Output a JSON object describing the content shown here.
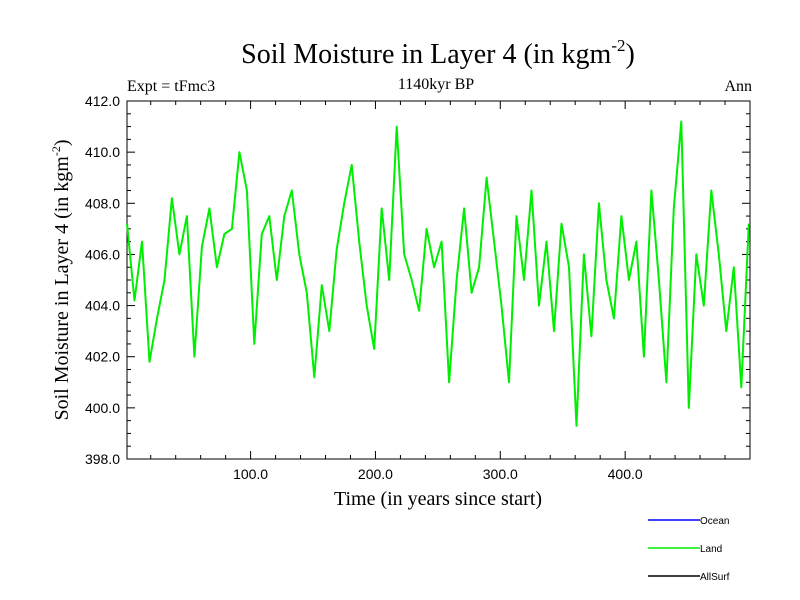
{
  "chart_data": {
    "type": "line",
    "title": "Soil Moisture in Layer 4 (in kgm",
    "title_sup": "-2",
    "title_close": ")",
    "subtitle": "1140kyr BP",
    "left_label": "Expt = tFmc3",
    "right_label": "Ann",
    "xlabel": "Time (in years since start)",
    "ylabel": "Soil Moisture in Layer 4 (in kgm",
    "ylabel_sup": "-2",
    "ylabel_close": ")",
    "xlim": [
      1,
      500
    ],
    "ylim": [
      398.0,
      412.0
    ],
    "x_ticks": [
      100,
      200,
      300,
      400
    ],
    "x_tick_labels": [
      "100.0",
      "200.0",
      "300.0",
      "400.0"
    ],
    "y_ticks": [
      398,
      400,
      402,
      404,
      406,
      408,
      410,
      412
    ],
    "y_tick_labels": [
      "398.0",
      "400.0",
      "402.0",
      "404.0",
      "406.0",
      "408.0",
      "410.0",
      "412.0"
    ],
    "legend": [
      {
        "name": "Ocean",
        "color": "#0000ff"
      },
      {
        "name": "Land",
        "color": "#00ee00"
      },
      {
        "name": "AllSurf",
        "color": "#000000"
      }
    ],
    "series": [
      {
        "name": "Land",
        "color": "#00ee00",
        "x": [
          1,
          7,
          13,
          19,
          25,
          31,
          37,
          43,
          49,
          55,
          61,
          67,
          73,
          79,
          85,
          91,
          97,
          103,
          109,
          115,
          121,
          127,
          133,
          139,
          145,
          151,
          157,
          163,
          169,
          175,
          181,
          187,
          193,
          199,
          205,
          211,
          217,
          223,
          229,
          235,
          241,
          247,
          253,
          259,
          265,
          271,
          277,
          283,
          289,
          295,
          301,
          307,
          313,
          319,
          325,
          331,
          337,
          343,
          349,
          355,
          361,
          367,
          373,
          379,
          385,
          391,
          397,
          403,
          409,
          415,
          421,
          427,
          433,
          439,
          445,
          451,
          457,
          463,
          469,
          475,
          481,
          487,
          493,
          499
        ],
        "values": [
          407.2,
          404.2,
          406.5,
          401.8,
          403.5,
          405.0,
          408.2,
          406.0,
          407.5,
          402.0,
          406.3,
          407.8,
          405.5,
          406.8,
          407.0,
          410.0,
          408.5,
          402.5,
          406.8,
          407.5,
          405.0,
          407.5,
          408.5,
          406.0,
          404.5,
          401.2,
          404.8,
          403.0,
          406.2,
          408.0,
          409.5,
          406.5,
          404.0,
          402.3,
          407.8,
          405.0,
          411.0,
          406.0,
          405.0,
          403.8,
          407.0,
          405.5,
          406.5,
          401.0,
          405.0,
          407.8,
          404.5,
          405.5,
          409.0,
          406.5,
          404.0,
          401.0,
          407.5,
          405.0,
          408.5,
          404.0,
          406.5,
          403.0,
          407.2,
          405.5,
          399.3,
          406.0,
          402.8,
          408.0,
          405.0,
          403.5,
          407.5,
          405.0,
          406.5,
          402.0,
          408.5,
          405.0,
          401.0,
          407.8,
          411.2,
          400.0,
          406.0,
          404.0,
          408.5,
          406.0,
          403.0,
          405.5,
          400.8,
          407.2
        ]
      }
    ]
  }
}
